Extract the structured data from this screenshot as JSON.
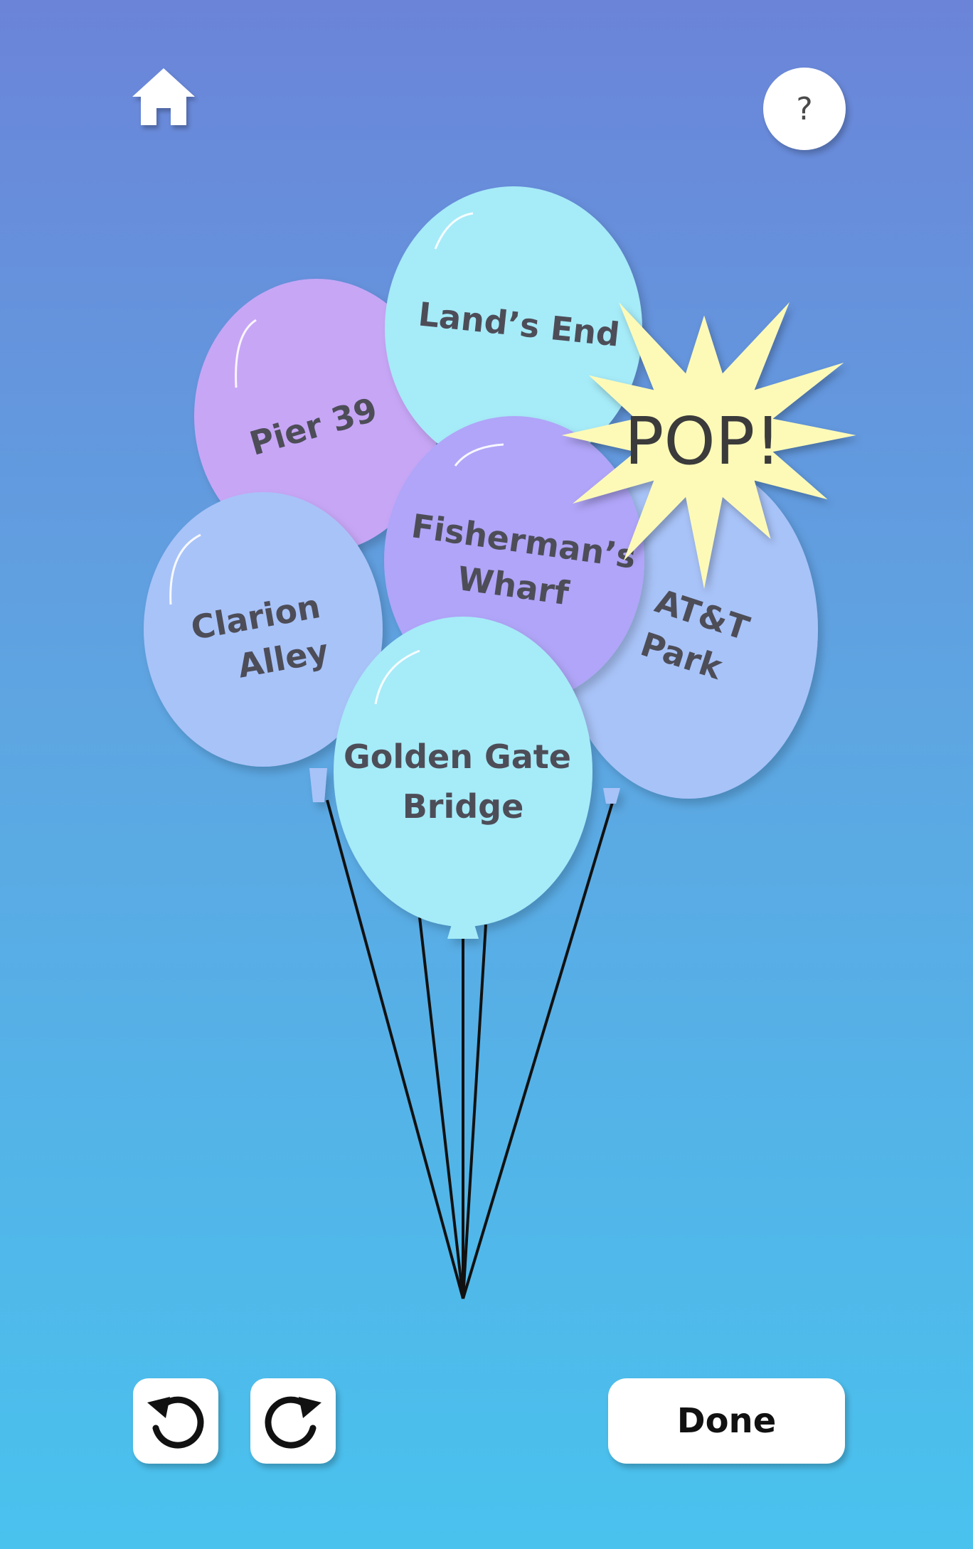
{
  "header": {
    "home_icon": "home-icon",
    "help_label": "?"
  },
  "balloons": [
    {
      "id": "pier-39",
      "lines": [
        "Pier 39"
      ],
      "color": "#c7a6f6"
    },
    {
      "id": "lands-end",
      "lines": [
        "Land’s End"
      ],
      "color": "#a6ebf8"
    },
    {
      "id": "clarion-alley",
      "lines": [
        "Clarion",
        "Alley"
      ],
      "color": "#a8c3f8"
    },
    {
      "id": "att-park",
      "lines": [
        "AT&T",
        "Park"
      ],
      "color": "#a8c3f8"
    },
    {
      "id": "fishermans-wharf",
      "lines": [
        "Fisherman’s",
        "Wharf"
      ],
      "color": "#b0a5f8"
    },
    {
      "id": "golden-gate-bridge",
      "lines": [
        "Golden Gate",
        "Bridge"
      ],
      "color": "#a6ebf8"
    }
  ],
  "pop": {
    "label": "POP!",
    "color": "#fdfab8"
  },
  "toolbar": {
    "undo_icon": "undo-icon",
    "redo_icon": "redo-icon",
    "done_label": "Done"
  }
}
